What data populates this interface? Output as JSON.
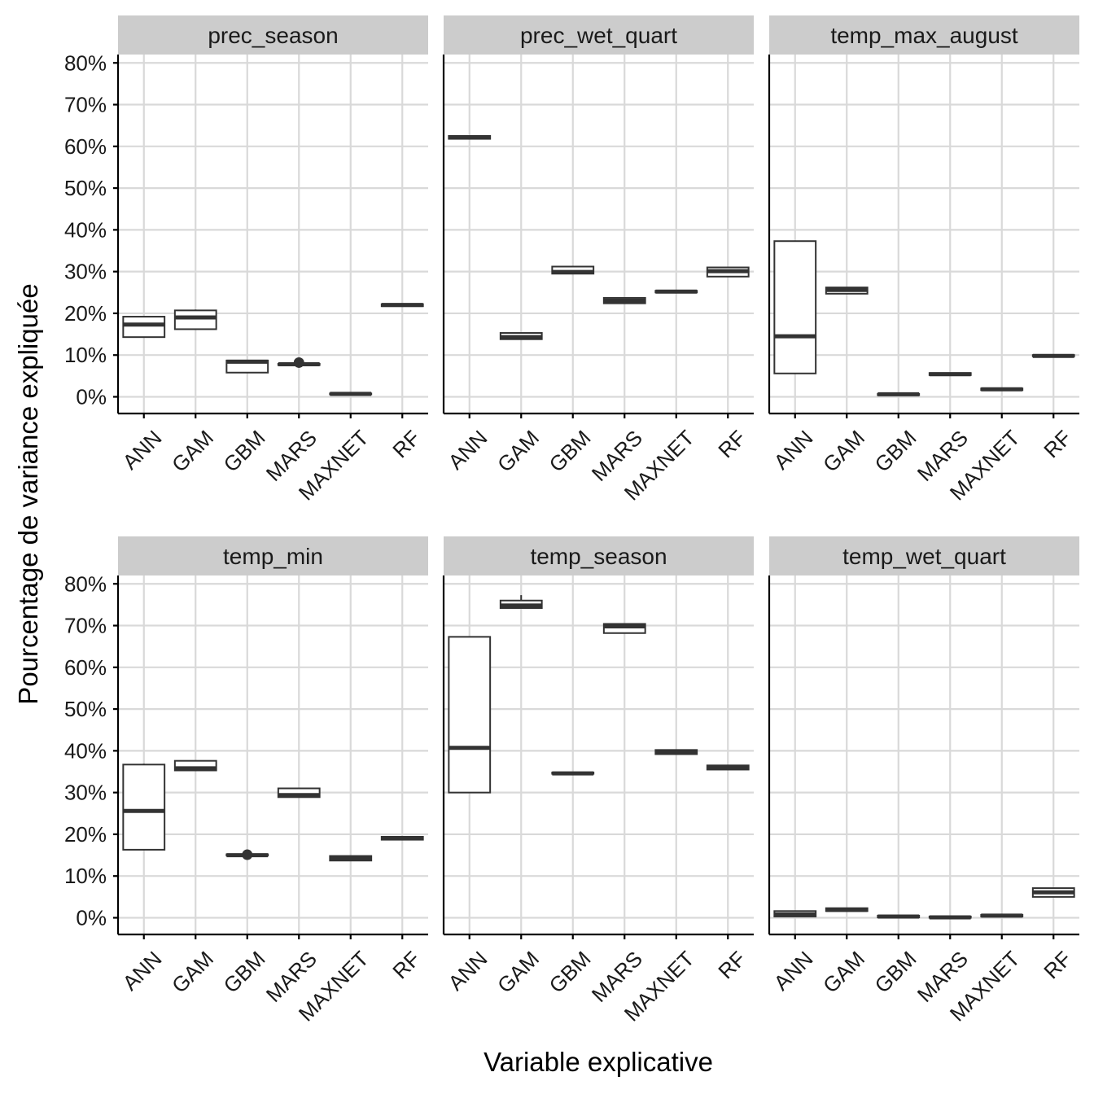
{
  "chart_data": {
    "type": "boxplot",
    "facet_layout": "2 rows x 3 columns",
    "xlabel": "Variable explicative",
    "ylabel": "Pourcentage de variance expliquée",
    "ylim": [
      -4,
      82
    ],
    "y_ticks": [
      0,
      10,
      20,
      30,
      40,
      50,
      60,
      70,
      80
    ],
    "y_tick_labels": [
      "0%",
      "10%",
      "20%",
      "30%",
      "40%",
      "50%",
      "60%",
      "70%",
      "80%"
    ],
    "categories": [
      "ANN",
      "GAM",
      "GBM",
      "MARS",
      "MAXNET",
      "RF"
    ],
    "grid": true,
    "colors": {
      "box_line": "#333333",
      "strip_bg": "#cccccc",
      "grid": "#d9d9d9",
      "axis": "#000000"
    },
    "panels": [
      {
        "title": "prec_season",
        "boxes": [
          {
            "category": "ANN",
            "lower": 14.3,
            "q1": 14.3,
            "median": 17.3,
            "q3": 19.2,
            "upper": 19.2,
            "outliers": []
          },
          {
            "category": "GAM",
            "lower": 16.2,
            "q1": 16.2,
            "median": 19.0,
            "q3": 20.7,
            "upper": 20.9,
            "outliers": []
          },
          {
            "category": "GBM",
            "lower": 5.8,
            "q1": 5.8,
            "median": 8.4,
            "q3": 8.7,
            "upper": 8.7,
            "outliers": []
          },
          {
            "category": "MARS",
            "lower": 7.5,
            "q1": 7.6,
            "median": 7.8,
            "q3": 7.9,
            "upper": 8.0,
            "outliers": [
              8.2
            ]
          },
          {
            "category": "MAXNET",
            "lower": 0.5,
            "q1": 0.6,
            "median": 0.7,
            "q3": 0.8,
            "upper": 0.9,
            "outliers": []
          },
          {
            "category": "RF",
            "lower": 21.6,
            "q1": 21.7,
            "median": 22.0,
            "q3": 22.2,
            "upper": 22.3,
            "outliers": []
          }
        ]
      },
      {
        "title": "prec_wet_quart",
        "boxes": [
          {
            "category": "ANN",
            "lower": 61.7,
            "q1": 61.8,
            "median": 62.1,
            "q3": 62.5,
            "upper": 62.6,
            "outliers": []
          },
          {
            "category": "GAM",
            "lower": 13.7,
            "q1": 13.8,
            "median": 14.3,
            "q3": 15.3,
            "upper": 15.3,
            "outliers": []
          },
          {
            "category": "GBM",
            "lower": 29.5,
            "q1": 29.5,
            "median": 29.9,
            "q3": 31.2,
            "upper": 31.2,
            "outliers": []
          },
          {
            "category": "MARS",
            "lower": 22.3,
            "q1": 22.4,
            "median": 23.0,
            "q3": 23.7,
            "upper": 23.7,
            "outliers": []
          },
          {
            "category": "MAXNET",
            "lower": 24.9,
            "q1": 25.0,
            "median": 25.2,
            "q3": 25.4,
            "upper": 25.5,
            "outliers": []
          },
          {
            "category": "RF",
            "lower": 28.7,
            "q1": 28.8,
            "median": 30.1,
            "q3": 31.0,
            "upper": 31.0,
            "outliers": []
          }
        ]
      },
      {
        "title": "temp_max_august",
        "boxes": [
          {
            "category": "ANN",
            "lower": 5.6,
            "q1": 5.6,
            "median": 14.5,
            "q3": 37.3,
            "upper": 37.3,
            "outliers": []
          },
          {
            "category": "GAM",
            "lower": 24.6,
            "q1": 24.7,
            "median": 25.6,
            "q3": 26.2,
            "upper": 26.2,
            "outliers": []
          },
          {
            "category": "GBM",
            "lower": 0.3,
            "q1": 0.4,
            "median": 0.6,
            "q3": 0.7,
            "upper": 0.8,
            "outliers": []
          },
          {
            "category": "MARS",
            "lower": 5.1,
            "q1": 5.2,
            "median": 5.4,
            "q3": 5.7,
            "upper": 5.8,
            "outliers": []
          },
          {
            "category": "MAXNET",
            "lower": 1.5,
            "q1": 1.6,
            "median": 1.8,
            "q3": 2.0,
            "upper": 2.1,
            "outliers": []
          },
          {
            "category": "RF",
            "lower": 9.6,
            "q1": 9.7,
            "median": 9.8,
            "q3": 10.0,
            "upper": 10.0,
            "outliers": []
          }
        ]
      },
      {
        "title": "temp_min",
        "boxes": [
          {
            "category": "ANN",
            "lower": 16.3,
            "q1": 16.3,
            "median": 25.6,
            "q3": 36.7,
            "upper": 36.9,
            "outliers": []
          },
          {
            "category": "GAM",
            "lower": 35.2,
            "q1": 35.3,
            "median": 35.8,
            "q3": 37.6,
            "upper": 37.6,
            "outliers": []
          },
          {
            "category": "GBM",
            "lower": 14.8,
            "q1": 14.9,
            "median": 15.0,
            "q3": 15.2,
            "upper": 15.3,
            "outliers": [
              15.1
            ]
          },
          {
            "category": "MARS",
            "lower": 28.8,
            "q1": 28.9,
            "median": 29.4,
            "q3": 31.0,
            "upper": 31.0,
            "outliers": []
          },
          {
            "category": "MAXNET",
            "lower": 13.6,
            "q1": 13.7,
            "median": 14.3,
            "q3": 14.8,
            "upper": 14.9,
            "outliers": []
          },
          {
            "category": "RF",
            "lower": 18.6,
            "q1": 18.7,
            "median": 19.1,
            "q3": 19.4,
            "upper": 19.5,
            "outliers": []
          }
        ]
      },
      {
        "title": "temp_season",
        "boxes": [
          {
            "category": "ANN",
            "lower": 30.0,
            "q1": 30.0,
            "median": 40.7,
            "q3": 67.3,
            "upper": 67.3,
            "outliers": []
          },
          {
            "category": "GAM",
            "lower": 74.1,
            "q1": 74.2,
            "median": 74.8,
            "q3": 76.0,
            "upper": 77.3,
            "outliers": []
          },
          {
            "category": "GBM",
            "lower": 34.4,
            "q1": 34.5,
            "median": 34.6,
            "q3": 34.8,
            "upper": 34.9,
            "outliers": []
          },
          {
            "category": "MARS",
            "lower": 68.2,
            "q1": 68.2,
            "median": 69.8,
            "q3": 70.4,
            "upper": 70.5,
            "outliers": []
          },
          {
            "category": "MAXNET",
            "lower": 39.1,
            "q1": 39.2,
            "median": 39.7,
            "q3": 40.2,
            "upper": 40.3,
            "outliers": []
          },
          {
            "category": "RF",
            "lower": 35.4,
            "q1": 35.5,
            "median": 36.0,
            "q3": 36.5,
            "upper": 36.6,
            "outliers": []
          }
        ]
      },
      {
        "title": "temp_wet_quart",
        "boxes": [
          {
            "category": "ANN",
            "lower": 0.3,
            "q1": 0.3,
            "median": 0.8,
            "q3": 1.6,
            "upper": 1.6,
            "outliers": []
          },
          {
            "category": "GAM",
            "lower": 1.5,
            "q1": 1.6,
            "median": 1.9,
            "q3": 2.3,
            "upper": 2.3,
            "outliers": []
          },
          {
            "category": "GBM",
            "lower": 0.1,
            "q1": 0.1,
            "median": 0.3,
            "q3": 0.5,
            "upper": 0.5,
            "outliers": []
          },
          {
            "category": "MARS",
            "lower": 0.0,
            "q1": 0.0,
            "median": 0.1,
            "q3": 0.3,
            "upper": 0.3,
            "outliers": []
          },
          {
            "category": "MAXNET",
            "lower": 0.3,
            "q1": 0.3,
            "median": 0.5,
            "q3": 0.7,
            "upper": 0.7,
            "outliers": []
          },
          {
            "category": "RF",
            "lower": 5.0,
            "q1": 5.0,
            "median": 6.1,
            "q3": 7.1,
            "upper": 7.1,
            "outliers": []
          }
        ]
      }
    ]
  }
}
